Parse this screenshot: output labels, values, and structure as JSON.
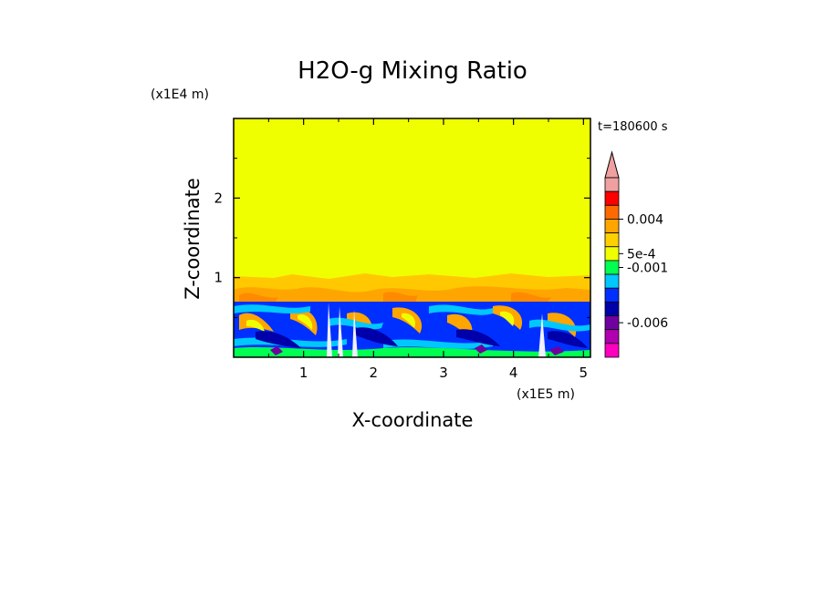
{
  "chart_data": {
    "type": "heatmap",
    "title": "H2O-g Mixing Ratio",
    "xlabel": "X-coordinate",
    "ylabel": "Z-coordinate",
    "x_unit": "(x1E5 m)",
    "y_unit": "(x1E4 m)",
    "time_label": "t=180600 s",
    "xlim": [
      0,
      5.1
    ],
    "ylim": [
      0,
      3.0
    ],
    "x_ticks": [
      1,
      2,
      3,
      4,
      5
    ],
    "y_ticks": [
      1,
      2
    ],
    "x_tick_labels": [
      "1",
      "2",
      "3",
      "4",
      "5"
    ],
    "y_tick_labels": [
      "1",
      "2"
    ],
    "colorbar": {
      "tick_labels": [
        "0.004",
        "5e-4",
        "-0.001",
        "-0.006"
      ],
      "extend": "max",
      "bins_top_to_bottom": [
        "#f0a0a0",
        "#ff0000",
        "#ff6a00",
        "#ffa500",
        "#ffd000",
        "#f0ff00",
        "#00ff50",
        "#00c8ff",
        "#0030ff",
        "#0000aa",
        "#7000a0",
        "#b000b0",
        "#ff00c0"
      ]
    },
    "regions": [
      {
        "name": "upper layer",
        "z_range": [
          1.0,
          3.0
        ],
        "color": "#f0ff00",
        "dominant_value": "0 to 5e-4"
      },
      {
        "name": "transition layer",
        "z_range": [
          0.7,
          1.0
        ],
        "color": "#ffa500",
        "dominant_value": "about 0.001"
      },
      {
        "name": "lower layer",
        "z_range": [
          0.0,
          0.7
        ],
        "color": "#0030ff",
        "dominant_value": "about -0.002"
      }
    ]
  }
}
